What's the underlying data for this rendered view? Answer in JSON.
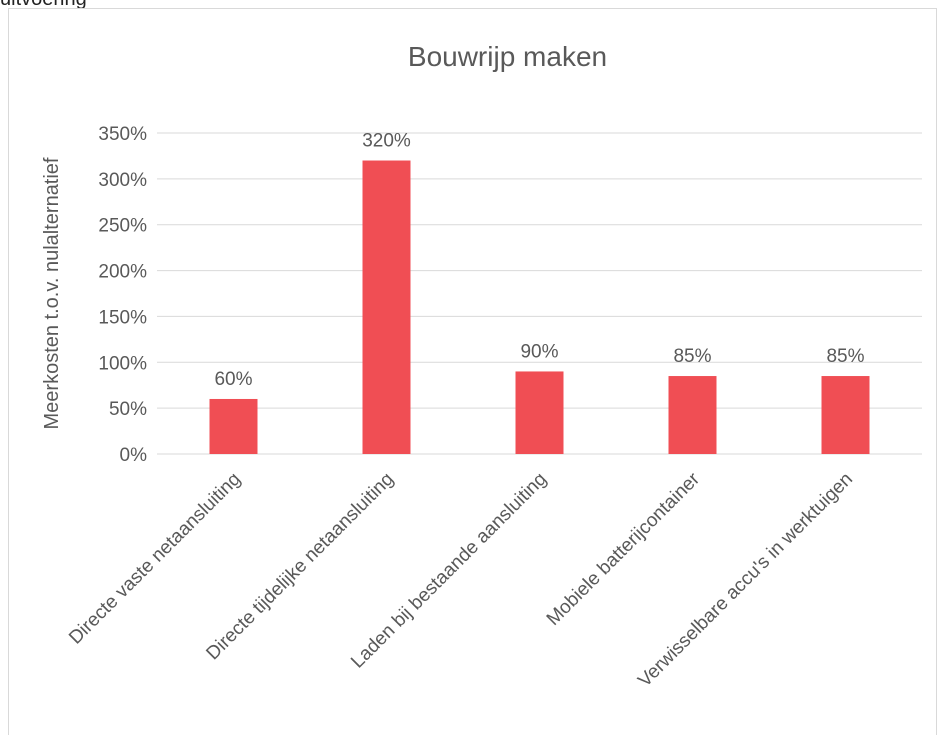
{
  "top_fragment": "uitvoering",
  "chart_data": {
    "type": "bar",
    "title": "Bouwrijp maken",
    "xlabel": "",
    "ylabel": "Meerkosten t.o.v. nulalternatief",
    "categories": [
      "Directe vaste netaansluiting",
      "Directe tijdelijke netaansluiting",
      "Laden bij bestaande aansluiting",
      "Mobiele batterijcontainer",
      "Verwisselbare accu's in werktuigen"
    ],
    "values": [
      60,
      320,
      90,
      85,
      85
    ],
    "data_labels": [
      "60%",
      "320%",
      "90%",
      "85%",
      "85%"
    ],
    "ylim": [
      0,
      350
    ],
    "yticks": [
      0,
      50,
      100,
      150,
      200,
      250,
      300,
      350
    ],
    "ytick_labels": [
      "0%",
      "50%",
      "100%",
      "150%",
      "200%",
      "250%",
      "300%",
      "350%"
    ],
    "grid": true,
    "legend": "none",
    "colors": {
      "bar": "#f04e54",
      "grid": "#d9d9d9",
      "text": "#595959",
      "title": "#595959"
    }
  }
}
